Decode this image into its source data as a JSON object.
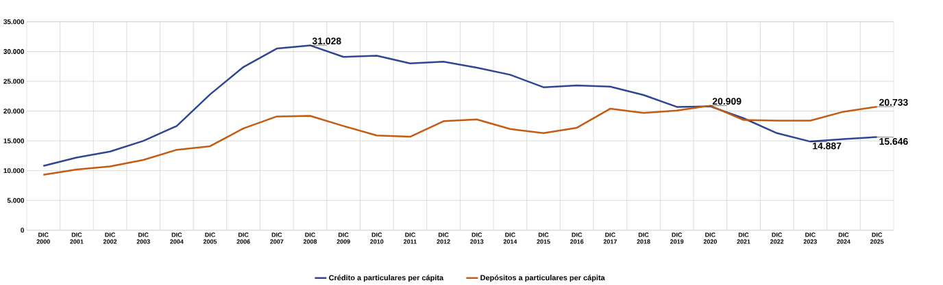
{
  "chart_data": {
    "type": "line",
    "categories": [
      "DIC 2000",
      "DIC 2001",
      "DIC 2002",
      "DIC 2003",
      "DIC 2004",
      "DIC 2005",
      "DIC 2006",
      "DIC 2007",
      "DIC 2008",
      "DIC 2009",
      "DIC 2010",
      "DIC 2011",
      "DIC 2012",
      "DIC 2013",
      "DIC 2014",
      "DIC 2015",
      "DIC 2016",
      "DIC 2017",
      "DIC 2018",
      "DIC 2019",
      "DIC 2020",
      "DIC 2021",
      "DIC 2022",
      "DIC 2023",
      "DIC 2024",
      "DIC 2025"
    ],
    "series": [
      {
        "name": "Crédito a particulares per cápita",
        "color": "#2f4592",
        "values": [
          10800,
          12200,
          13200,
          15000,
          17500,
          22800,
          27400,
          30500,
          31028,
          29100,
          29300,
          28000,
          28300,
          27300,
          26100,
          24000,
          24300,
          24100,
          22700,
          20700,
          20800,
          18800,
          16300,
          14887,
          15300,
          15646
        ],
        "value_labels": [
          null,
          null,
          null,
          null,
          null,
          null,
          null,
          null,
          "31.028",
          null,
          null,
          null,
          null,
          null,
          null,
          null,
          null,
          null,
          null,
          null,
          null,
          null,
          null,
          "14.887",
          null,
          "15.646"
        ]
      },
      {
        "name": "Depósitos a particulares per cápita",
        "color": "#c55a11",
        "values": [
          9300,
          10200,
          10700,
          11800,
          13500,
          14100,
          17100,
          19100,
          19200,
          17500,
          15900,
          15700,
          18300,
          18600,
          17000,
          16300,
          17200,
          20400,
          19700,
          20100,
          20909,
          18500,
          18400,
          18400,
          19900,
          20733
        ],
        "value_labels": [
          null,
          null,
          null,
          null,
          null,
          null,
          null,
          null,
          null,
          null,
          null,
          null,
          null,
          null,
          null,
          null,
          null,
          null,
          null,
          null,
          "20.909",
          null,
          null,
          null,
          null,
          "20.733"
        ]
      }
    ],
    "ylim": [
      0,
      35000
    ],
    "yticks": [
      {
        "value": 0,
        "label": "0"
      },
      {
        "value": 5000,
        "label": "5.000"
      },
      {
        "value": 10000,
        "label": "10.000"
      },
      {
        "value": 15000,
        "label": "15.000"
      },
      {
        "value": 20000,
        "label": "20.000"
      },
      {
        "value": 25000,
        "label": "25.000"
      },
      {
        "value": 30000,
        "label": "30.000"
      },
      {
        "value": 35000,
        "label": "35.000"
      }
    ],
    "grid": true,
    "legend": "bottom",
    "marker": "none",
    "line_style": "solid"
  }
}
